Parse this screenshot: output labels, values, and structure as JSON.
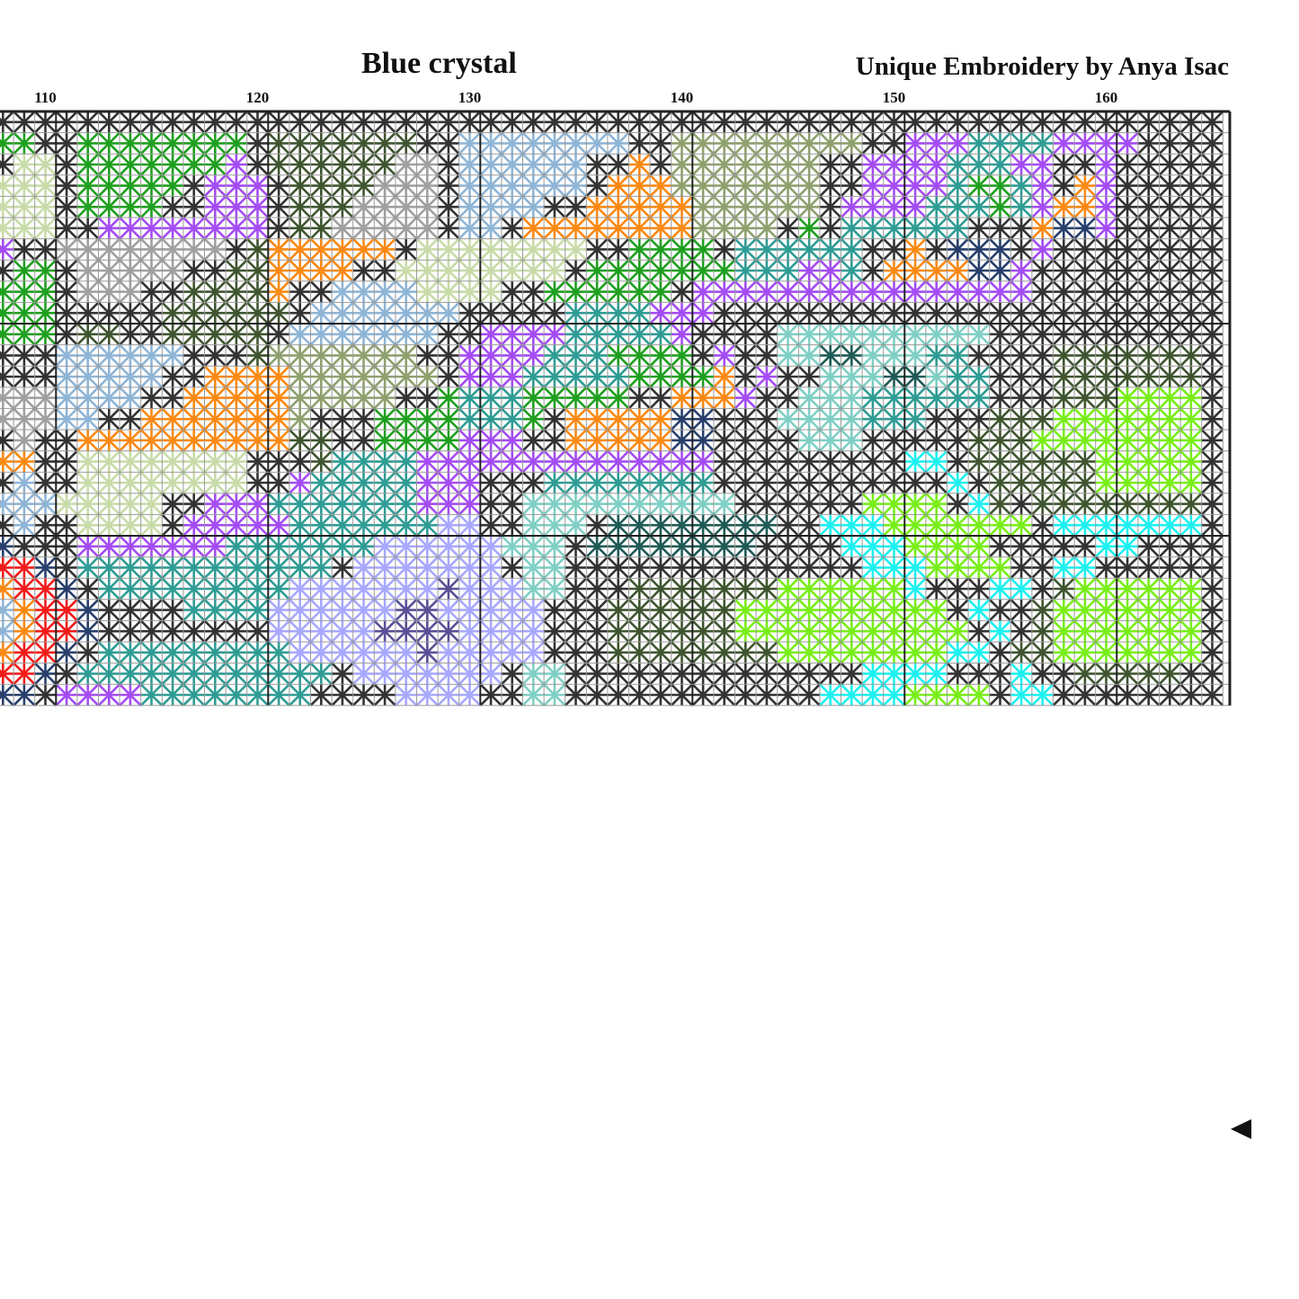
{
  "header": {
    "title": "Blue crystal",
    "author": "Unique Embroidery by Anya Isac"
  },
  "chart_data": {
    "type": "cross-stitch-pattern",
    "columns": {
      "first": 108,
      "last": 165
    },
    "column_labels": [
      "110",
      "120",
      "130",
      "140",
      "150",
      "160"
    ],
    "center_marker": "right-arrow",
    "palette": {
      "k": "#333333",
      "d": "#3f5530",
      "G": "#1f9f1f",
      "p": "#a44cf3",
      "o": "#fb8913",
      "b": "#8fb5d6",
      "l": "#c8dba8",
      "g": "#a0a0a0",
      "t": "#2f9c94",
      "q": "#7fcfc4",
      "s": "#8fa06e",
      "c": "#1ef0f0",
      "y": "#78ee18",
      "n": "#283f6c",
      "r": "#f31a1a",
      "v": "#a8a8ff",
      "u": "#5a5096",
      "e": "#1f5a55"
    },
    "rows": [
      "kkkkkkkkkkkkkkkkkkkkkkkkkkkkkkkkkkkkkkkkkkkkkkkkkkkkkkkkkk",
      "GGkkGGGGGGGGkdddddddkkbbbbbbbbkkssssssssskkpppttttppppkkkk",
      "kllkGGGGGGGpkddddddggkbbbbbbkkokssssssskkpppptttppkkpkkkkk",
      "lllkGGGGGkpppkddddgggkbbbbbbkooossssssskkpppptGGtpkopkkkkk",
      "lllkGGGGkkpppkdddggggkbbbbkkooooosssssskpppptttGtpoopkkkkk",
      "lllkkppppppppkddgggggkbbkoooooooosssskGkttttttkkkonnpkkkkk",
      "pkkggggggggkdooooookllllllllkkGGGGkttttttkkoknnnkpkkkkkkkk",
      "kGGkgggggkkddooookkllllllllkGGGGGGGtttpptkoooonnpkkkkkkkkk",
      "GGGkgggkkddddokkbbbbllllkkGGGGGGkppppppppppppppppkkkkkkkkk",
      "GGGkkkkkddddddkbbbbbbbkkkkkttttpppkkkkkkkkkkkkkkkkkkkkkkkk",
      "GGGkddkkdddddkbbbbbbbkkpppptttttpkkkkqqqqqqqqqqkkkkkkkkkkk",
      "kkkbbbbbbkkkdssssssskkpppptttGGGGkpkkqqeeqqqttkkkkdddddddk",
      "kkkbbbbbkkoooossssssskppptttttGGGGokpkkqqqeeqttkkkdddddddk",
      "gggbbbbkkooooossssskkGtttGGGGGkkooopkkqqqttttttkkkdddyyyyk",
      "gggbbkkoooooooskkkGGGGtttGkooooonnkkkqqqqtttkkkdddyyyyyyyk",
      "kgkkooooooooooddkkGGGGpppkkooooonnkkkkqqqkkkkkdddyyyyyyyyk",
      "ookkllllllllkkkdttttppppppppppppppkkkkkkkkkcckddddddyyyyyk",
      "kbkkllllllllkkptttttpppkkkttttttttkkkkkkkkkkkckdddddyyyyyk",
      "bbblllllkkppptttttttpppkkqqqqqqqqqqkkkkkkyyyykcdkddddddddk",
      "kbkkllllkppppptttttttvvkkqqqkeeeeeeeekkcccyyyyyyykccccccck",
      "nkkkppppppptttttttvvvvvvqqqkeeeeeeeekkkkcccyyyykkkkkcckkkk",
      "rrnkttttttttttttkvvvvvvvkqqkkkkkkkkkkkkkkcccyyyykkcckkkkkk",
      "orrnktttttttttvvvvvvvuvvvqqkkkdddddddyyyyyyckkkcckdyyyyyyk",
      "borrnkkkkttttvvvvvvuuvvvvvkkkddddddyyyyyyyyyykckkdyyyyyyyk",
      "borrnkkkkkkkkvvvvvuuuuvvvvkkkddddddyyyyyyyyyyykckdyyyyyyyk",
      "orrnktttttttttvvvvvvuvvvvvkkkddddddddyyyyyyyycckddyyyyyyyk",
      "rrnkttttttttttttkvvvvvvvkqqkkkkkkkkkkkkkkcccckkkckkdddddkk",
      "nnkppppttttttttkkkkvvvvkkqqkkkkkkkkkkkkccccyyyykcckkkkkkkk"
    ]
  }
}
